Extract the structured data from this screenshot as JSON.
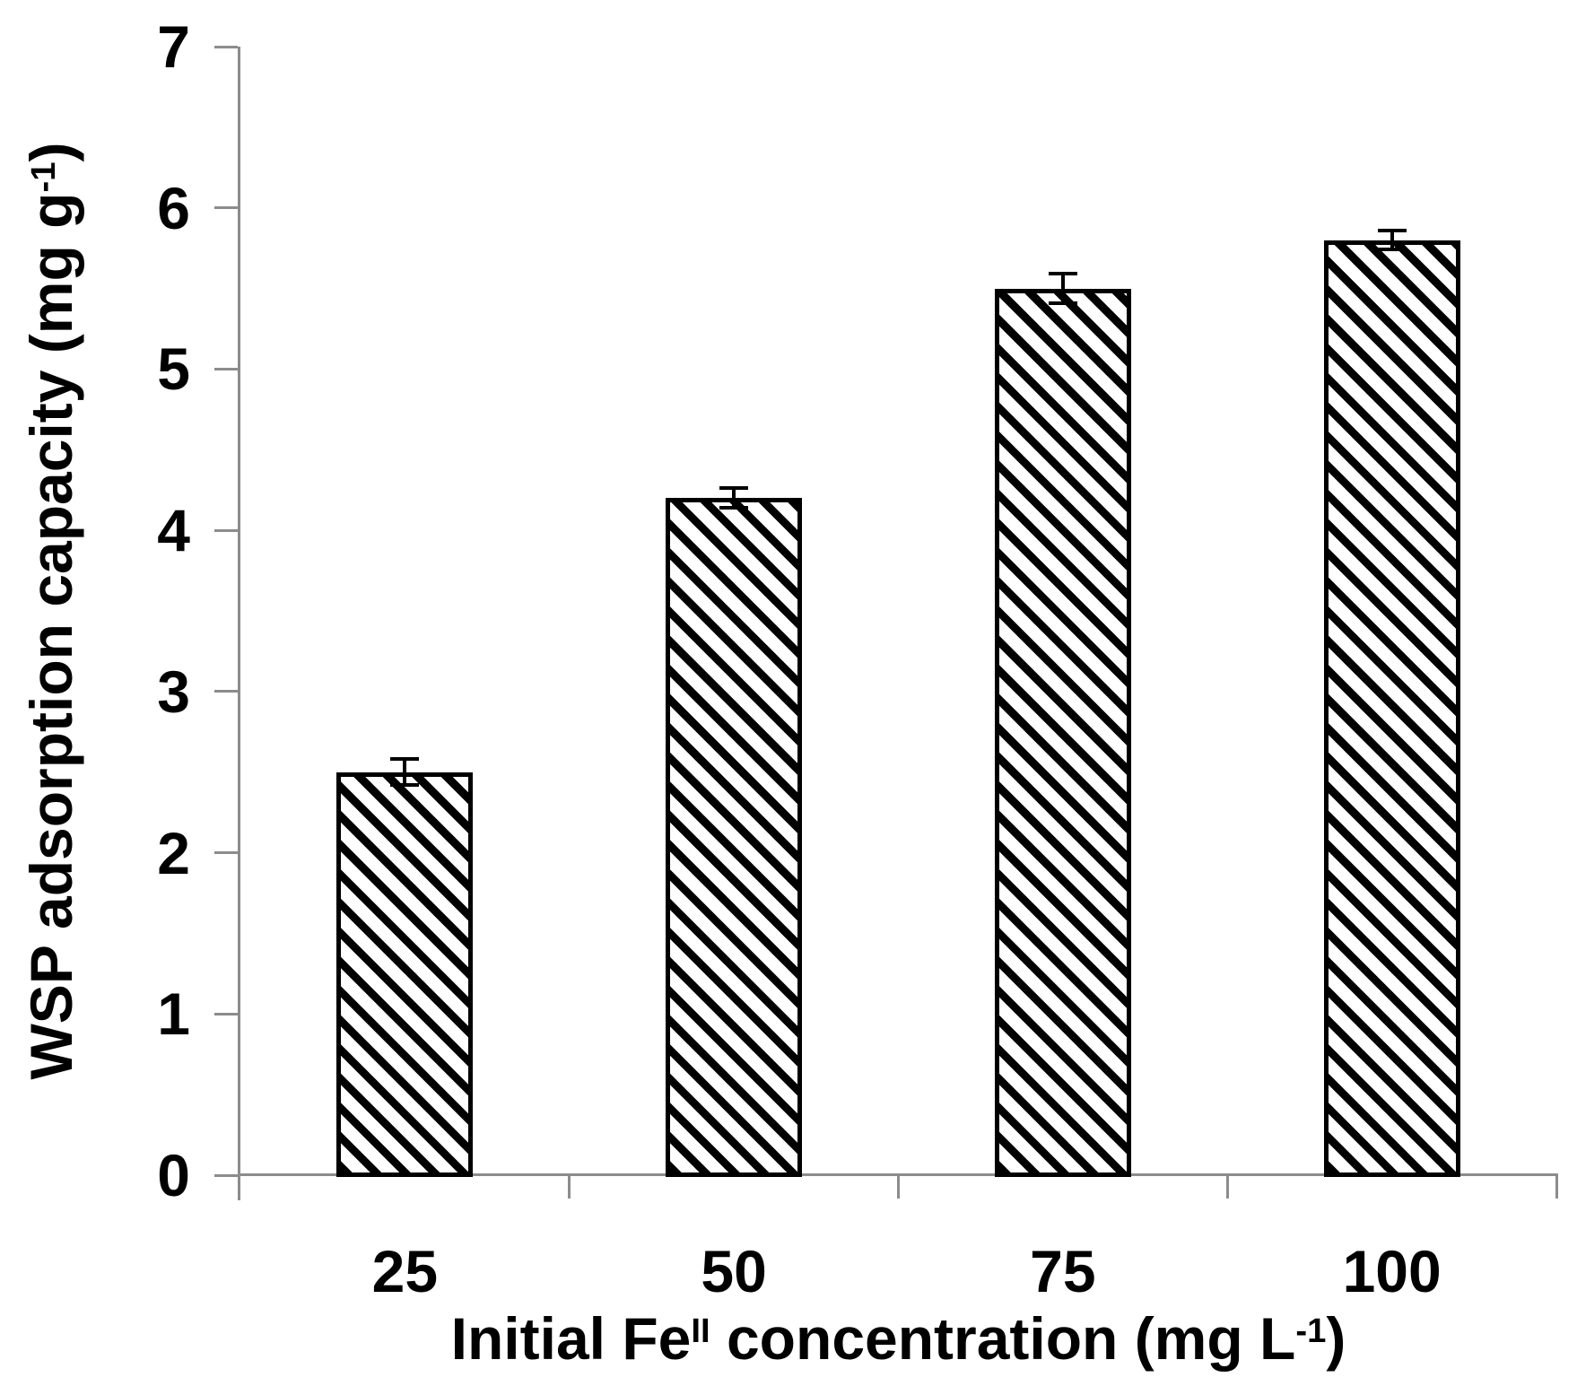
{
  "figure": {
    "background": "#ffffff"
  },
  "chart_data": {
    "type": "bar",
    "title": "",
    "categories": [
      "25",
      "50",
      "75",
      "100"
    ],
    "values": [
      2.5,
      4.2,
      5.5,
      5.8
    ],
    "error_bars": [
      0.08,
      0.06,
      0.09,
      0.06
    ],
    "yticks": [
      "0",
      "1",
      "2",
      "3",
      "4",
      "5",
      "6",
      "7"
    ],
    "ylim": [
      0,
      7
    ],
    "xlabel_plain": "Initial FeII concentration (mg L-1)",
    "ylabel_plain": "WSP adsorption capacity (mg g-1)",
    "xlabel_rich": {
      "pre": "Initial Fe",
      "sup1": "II",
      "mid": " concentration (mg L",
      "sup2": "-1",
      "post": ")"
    },
    "ylabel_rich": {
      "pre": "WSP adsorption capacity (mg g",
      "sup": "-1",
      "post": ")"
    },
    "grid": false,
    "legend": false,
    "bar_style": {
      "fill": "#ffffff",
      "hatch": "diagonal-down",
      "hatch_color": "#000000",
      "border_color": "#000000"
    },
    "axis_color": "#8c8c8c",
    "text_color": "#000000"
  }
}
